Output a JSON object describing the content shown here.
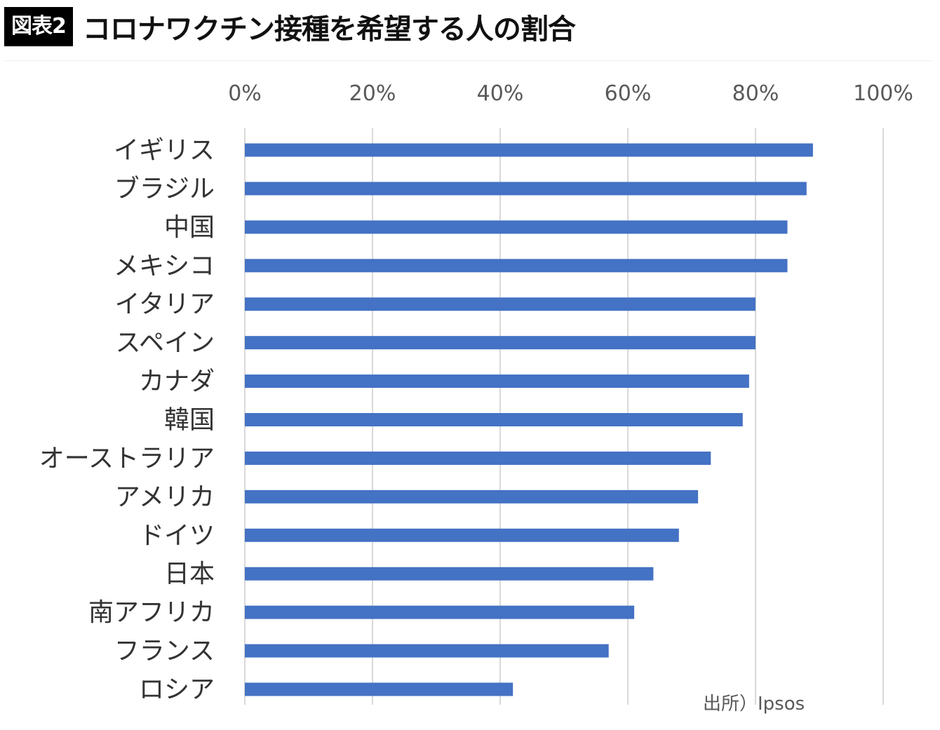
{
  "header": {
    "badge": "図表2",
    "title": "コロナワクチン接種を希望する人の割合"
  },
  "source_note": "出所）Ipsos",
  "colors": {
    "bar": "#4472C4",
    "grid": "#D9D9D9",
    "axis_text": "#595959",
    "category_text": "#333333"
  },
  "chart_data": {
    "type": "bar",
    "orientation": "horizontal",
    "categories": [
      "イギリス",
      "ブラジル",
      "中国",
      "メキシコ",
      "イタリア",
      "スペイン",
      "カナダ",
      "韓国",
      "オーストラリア",
      "アメリカ",
      "ドイツ",
      "日本",
      "南アフリカ",
      "フランス",
      "ロシア"
    ],
    "values": [
      89,
      88,
      85,
      85,
      80,
      80,
      79,
      78,
      73,
      71,
      68,
      64,
      61,
      57,
      42
    ],
    "xlim": [
      0,
      100
    ],
    "xticks": [
      "0%",
      "20%",
      "40%",
      "60%",
      "80%",
      "100%"
    ],
    "x_axis_position": "top",
    "grid": true,
    "title": "コロナワクチン接種を希望する人の割合",
    "xlabel": "",
    "ylabel": ""
  }
}
